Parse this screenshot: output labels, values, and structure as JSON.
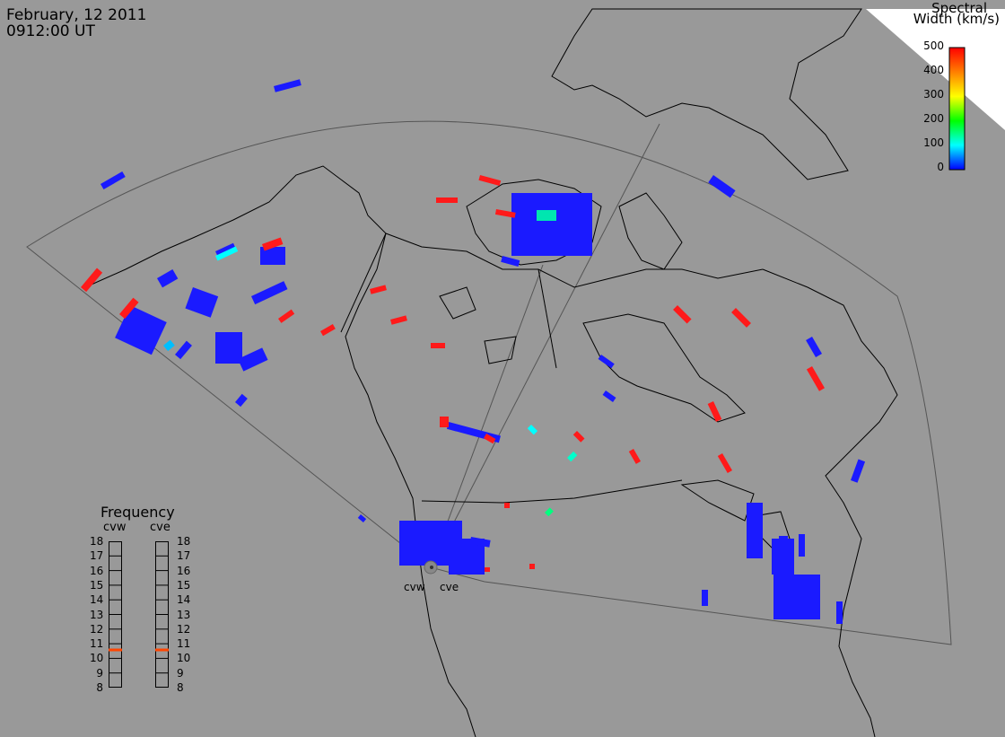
{
  "header": {
    "date": "February, 12 2011",
    "time": "0912:00 UT"
  },
  "colorbar": {
    "title_line1": "Spectral",
    "title_line2": "Width (km/s)",
    "ticks": [
      "500",
      "400",
      "300",
      "200",
      "100",
      "0"
    ],
    "gradient": [
      "#ff0000",
      "#ff7f00",
      "#ffff00",
      "#00ff00",
      "#00ffff",
      "#0000ff"
    ]
  },
  "frequency_panel": {
    "title": "Frequency",
    "radars": [
      {
        "name": "cvw",
        "selected": 11
      },
      {
        "name": "cve",
        "selected": 11
      }
    ],
    "scale": [
      "18",
      "17",
      "16",
      "15",
      "14",
      "13",
      "12",
      "11",
      "10",
      "9",
      "8"
    ],
    "marker_color": "#ff4500"
  },
  "sites": [
    {
      "code": "cvw"
    },
    {
      "code": "cve"
    }
  ],
  "colors": {
    "background": "#999999",
    "coast": "#000000",
    "low_width": "#1a1aff",
    "high_width": "#ff1a1a",
    "cyan": "#00ffff",
    "teal": "#00e6b0"
  }
}
